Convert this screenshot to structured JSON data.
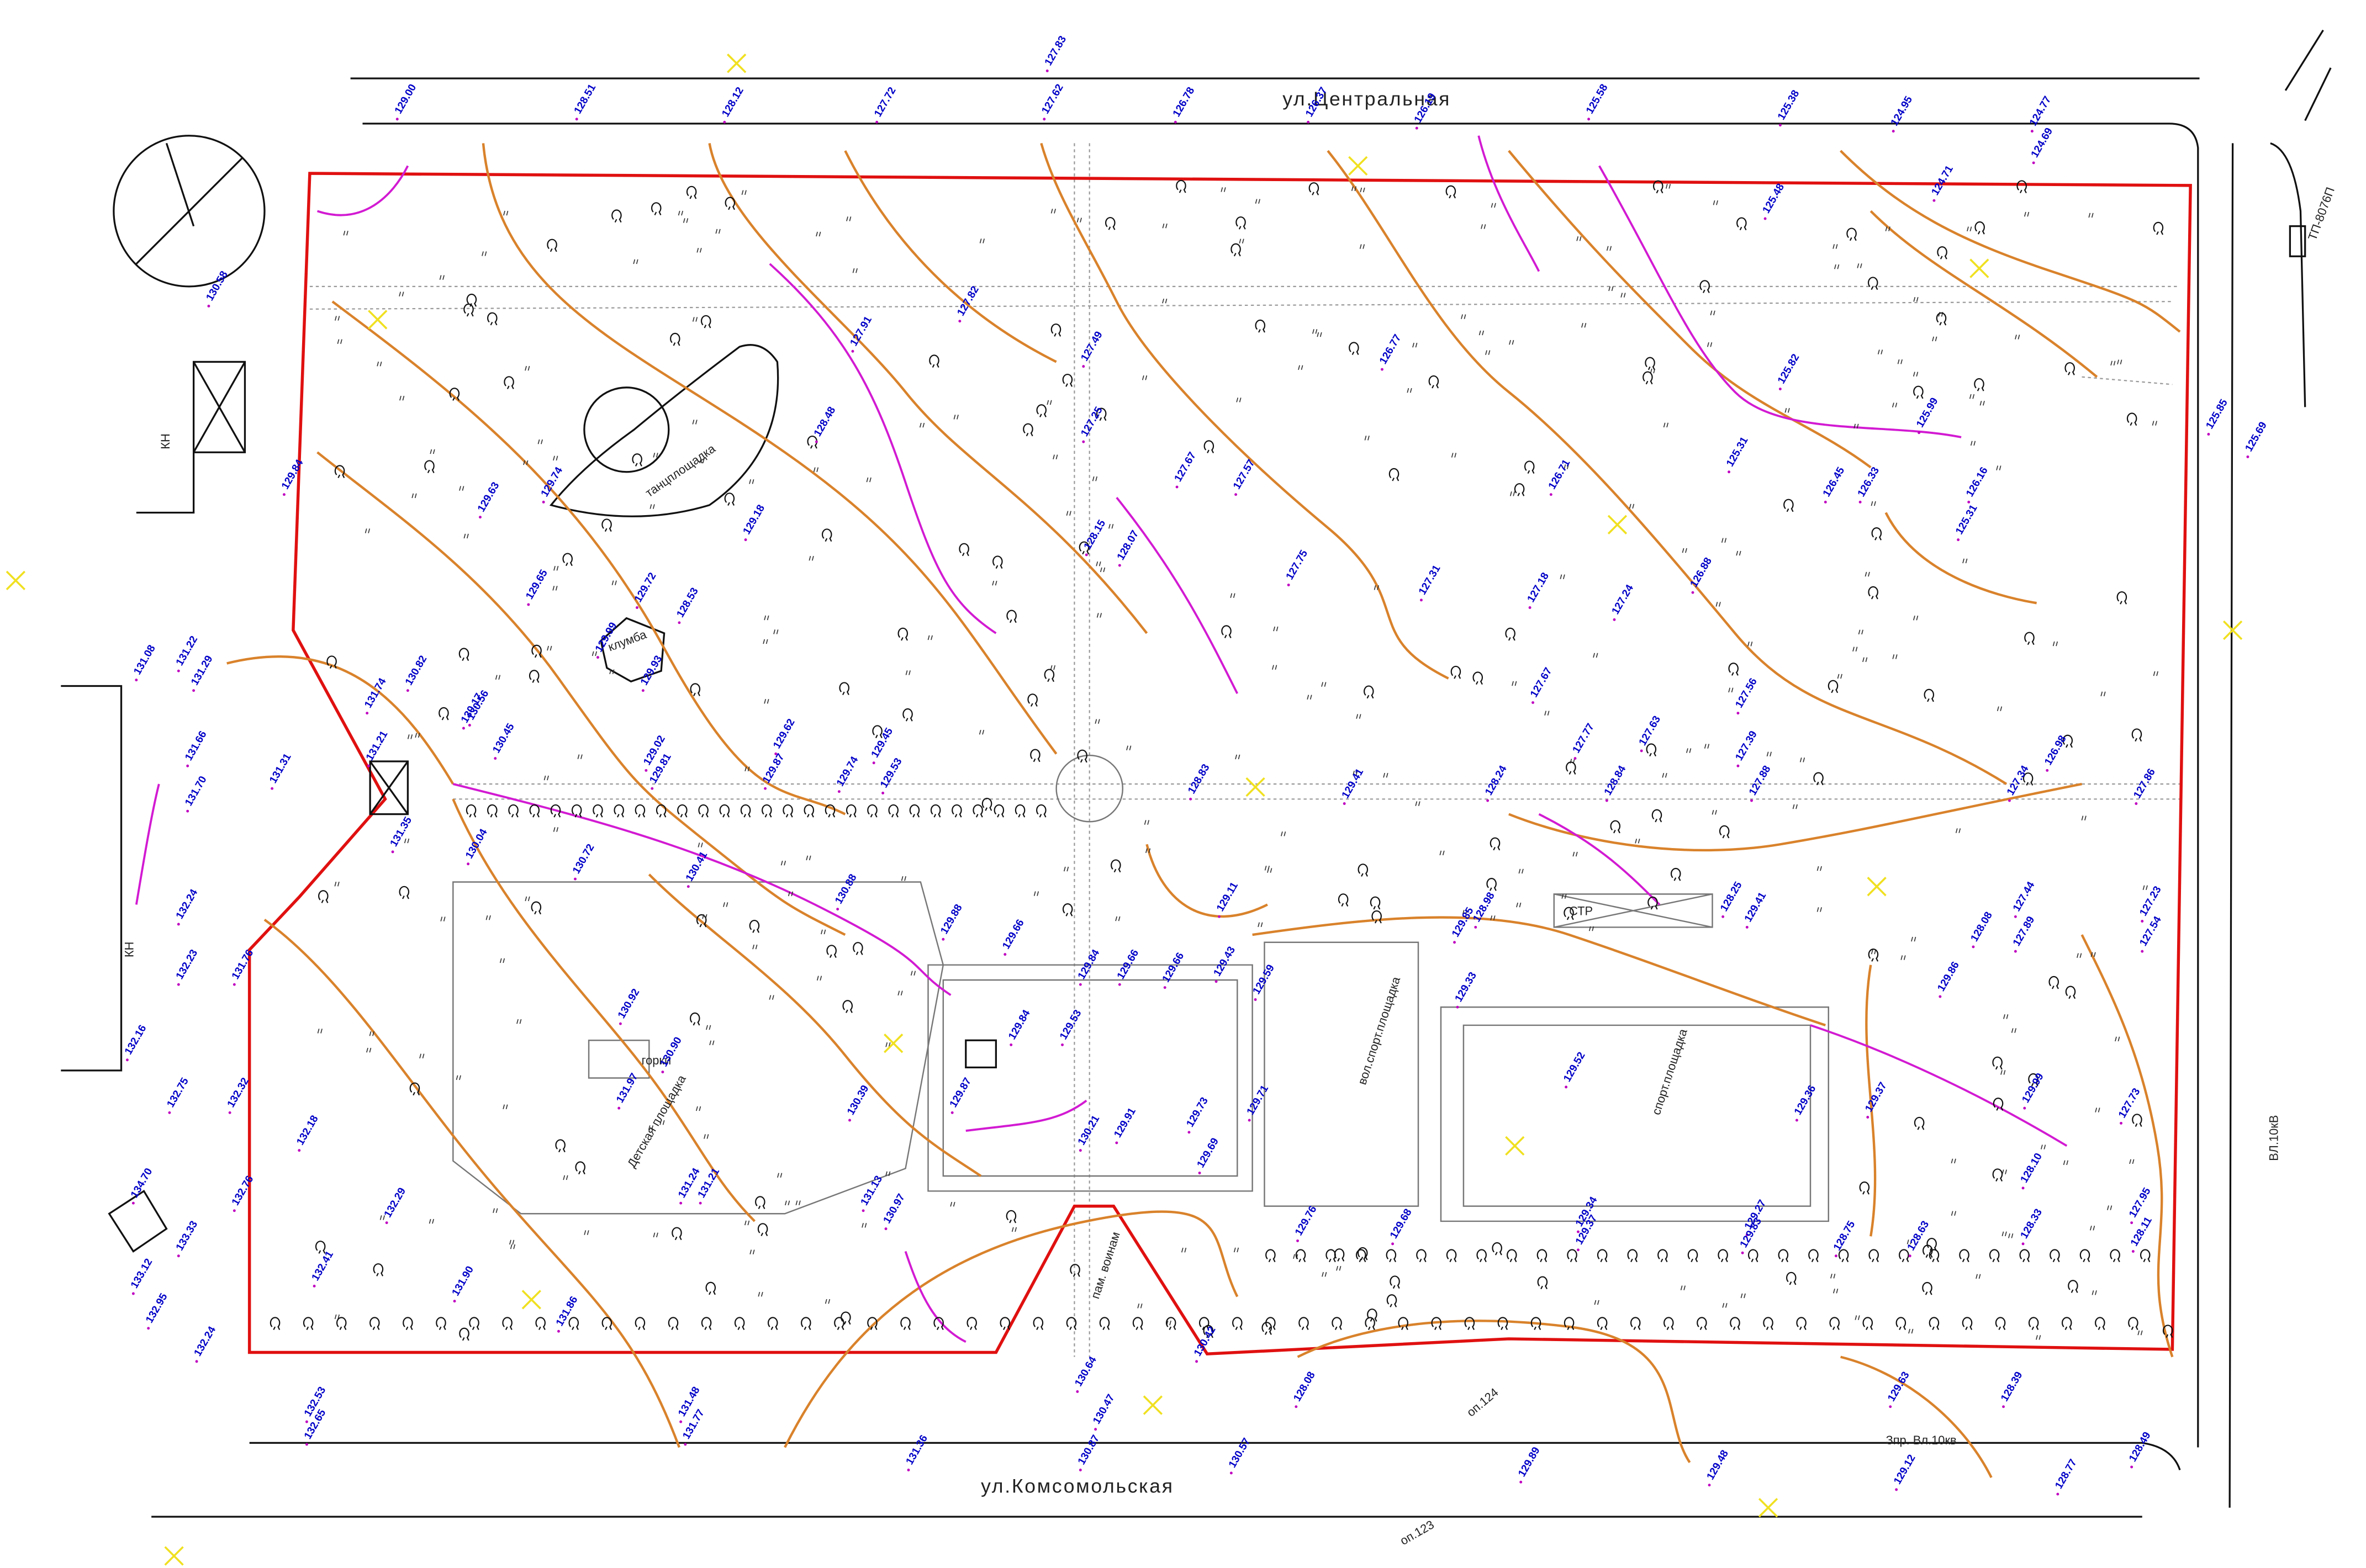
{
  "streets": [
    "ул.Центральная",
    "ул.Комсомольская"
  ],
  "areas": [
    "танцплощадка",
    "Детская площадка",
    "вол.спорт.площадка",
    "спорт.площадка",
    "горки",
    "клумба",
    "СТР",
    "пам. воинам",
    "КН",
    "КН"
  ],
  "notes": [
    "ВЛ.10кВ",
    "Зпр. Вл.10кв",
    "оп.123",
    "оп.124",
    "ТП-8076П"
  ],
  "elevations": [
    "127.83",
    "129.00",
    "128.51",
    "128.12",
    "127.72",
    "127.62",
    "126.78",
    "126.37",
    "126.19",
    "125.58",
    "125.38",
    "124.95",
    "124.77",
    "125.85",
    "125.69",
    "129.74",
    "129.63",
    "129.84",
    "129.65",
    "129.72",
    "128.53",
    "129.99",
    "129.18",
    "128.48",
    "127.91",
    "127.82",
    "127.49",
    "127.25",
    "128.15",
    "128.07",
    "127.67",
    "127.57",
    "127.75",
    "126.77",
    "127.31",
    "126.71",
    "127.18",
    "127.24",
    "126.88",
    "127.67",
    "127.77",
    "127.63",
    "127.56",
    "127.39",
    "126.98",
    "125.31",
    "125.82",
    "125.48",
    "124.71",
    "124.69",
    "126.45",
    "126.33",
    "126.16",
    "125.31",
    "125.99",
    "128.24",
    "128.84",
    "127.88",
    "127.34",
    "127.86",
    "128.83",
    "129.41",
    "129.11",
    "129.52",
    "129.36",
    "129.37",
    "129.99",
    "127.73",
    "129.86",
    "128.08",
    "127.44",
    "127.23",
    "127.54",
    "127.89",
    "129.41",
    "128.25",
    "128.98",
    "129.33",
    "129.85",
    "129.76",
    "129.68",
    "129.34",
    "129.37",
    "129.27",
    "129.83",
    "128.75",
    "128.63",
    "128.10",
    "128.33",
    "127.95",
    "128.11",
    "131.36",
    "130.87",
    "130.57",
    "129.89",
    "129.48",
    "129.12",
    "128.77",
    "128.49",
    "128.39",
    "129.63",
    "131.48",
    "131.77",
    "132.53",
    "132.65",
    "130.64",
    "130.47",
    "130.42",
    "128.08",
    "131.31",
    "131.35",
    "131.21",
    "131.74",
    "132.24",
    "132.23",
    "132.75",
    "132.16",
    "131.70",
    "131.66",
    "131.29",
    "131.22",
    "131.08",
    "130.58",
    "134.70",
    "133.12",
    "133.33",
    "132.95",
    "132.24",
    "132.32",
    "132.18",
    "132.41",
    "132.29",
    "131.90",
    "131.86",
    "132.76",
    "131.76",
    "129.88",
    "129.66",
    "129.84",
    "129.53",
    "129.84",
    "129.87",
    "130.21",
    "129.91",
    "129.73",
    "129.69",
    "129.71",
    "129.59",
    "129.43",
    "129.66",
    "129.66",
    "130.39",
    "130.97",
    "131.13",
    "131.24",
    "131.21",
    "131.97",
    "130.90",
    "130.92",
    "130.41",
    "130.88",
    "130.04",
    "130.72",
    "129.62",
    "129.87",
    "129.74",
    "129.53",
    "129.45",
    "129.02",
    "129.81",
    "129.93",
    "130.17",
    "130.82",
    "130.56",
    "130.45"
  ]
}
